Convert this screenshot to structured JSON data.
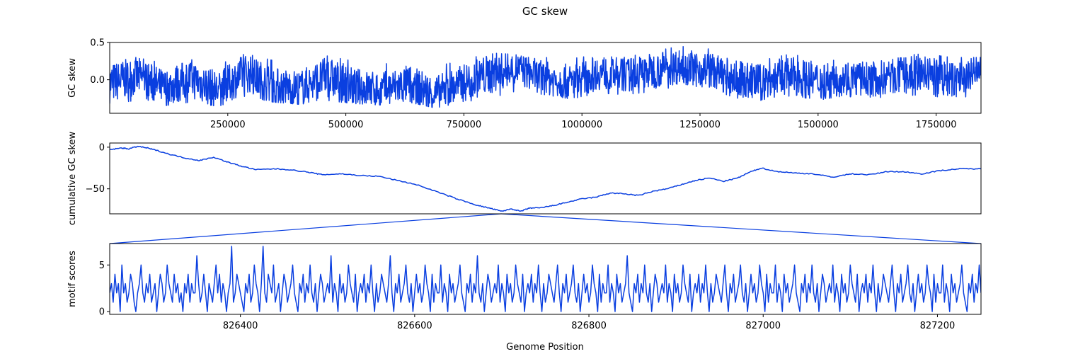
{
  "figure": {
    "title": "GC skew",
    "xlabel": "Genome Position",
    "line_color": "#0a3fe0"
  },
  "chart_data": [
    {
      "type": "line",
      "ylabel": "GC skew",
      "xlim": [
        0,
        1845000
      ],
      "ylim": [
        -0.45,
        0.5
      ],
      "xticks": [
        250000,
        500000,
        750000,
        1000000,
        1250000,
        1500000,
        1750000
      ],
      "yticks": [
        0.0,
        0.5
      ],
      "ytick_labels": [
        "0.0",
        "0.5"
      ],
      "grid": false,
      "series": [
        {
          "x": [
            0,
            57000,
            115000,
            172000,
            230000,
            287000,
            345000,
            402000,
            460000,
            517000,
            575000,
            632000,
            690000,
            747000,
            805000,
            862000,
            920000,
            977000,
            1035000,
            1092000,
            1150000,
            1207000,
            1265000,
            1322000,
            1380000,
            1437000,
            1495000,
            1552000,
            1610000,
            1667000,
            1725000,
            1782000,
            1845000
          ],
          "y": [
            -0.05,
            0.05,
            -0.12,
            0.02,
            -0.15,
            0.1,
            -0.08,
            -0.12,
            0.04,
            -0.1,
            -0.14,
            -0.06,
            -0.2,
            -0.05,
            0.08,
            0.15,
            0.02,
            -0.04,
            0.1,
            0.06,
            0.12,
            0.18,
            0.14,
            0.02,
            -0.04,
            0.06,
            -0.02,
            0.03,
            0.0,
            0.05,
            0.08,
            -0.02,
            0.1
          ],
          "ymin": [
            -0.32,
            -0.28,
            -0.35,
            -0.3,
            -0.36,
            -0.22,
            -0.3,
            -0.33,
            -0.28,
            -0.32,
            -0.34,
            -0.3,
            -0.38,
            -0.3,
            -0.25,
            -0.15,
            -0.2,
            -0.26,
            -0.18,
            -0.2,
            -0.16,
            -0.08,
            -0.1,
            -0.24,
            -0.3,
            -0.22,
            -0.28,
            -0.22,
            -0.25,
            -0.22,
            -0.2,
            -0.26,
            -0.2
          ],
          "ymax": [
            0.28,
            0.3,
            0.22,
            0.3,
            0.2,
            0.35,
            0.26,
            0.22,
            0.32,
            0.25,
            0.2,
            0.28,
            0.18,
            0.26,
            0.36,
            0.34,
            0.3,
            0.28,
            0.34,
            0.3,
            0.38,
            0.45,
            0.42,
            0.3,
            0.26,
            0.34,
            0.3,
            0.32,
            0.28,
            0.32,
            0.35,
            0.3,
            0.3
          ]
        }
      ]
    },
    {
      "type": "line",
      "ylabel": "cumulative GC skew",
      "xlim": [
        0,
        1845000
      ],
      "ylim": [
        -80,
        5
      ],
      "yticks": [
        0,
        -50
      ],
      "ytick_labels": [
        "0",
        "−50"
      ],
      "grid": false,
      "series": [
        {
          "x": [
            0,
            25000,
            40000,
            60000,
            80000,
            100000,
            130000,
            160000,
            190000,
            220000,
            250000,
            280000,
            310000,
            350000,
            380000,
            420000,
            450000,
            490000,
            530000,
            570000,
            610000,
            650000,
            700000,
            740000,
            780000,
            810000,
            830000,
            850000,
            870000,
            890000,
            910000,
            940000,
            970000,
            1000000,
            1030000,
            1060000,
            1090000,
            1120000,
            1150000,
            1180000,
            1210000,
            1240000,
            1270000,
            1300000,
            1330000,
            1355000,
            1380000,
            1410000,
            1450000,
            1490000,
            1530000,
            1570000,
            1610000,
            1650000,
            1690000,
            1720000,
            1760000,
            1800000,
            1845000
          ],
          "y": [
            -3,
            -1,
            -2,
            1,
            -1,
            -4,
            -9,
            -13,
            -16,
            -12,
            -18,
            -23,
            -27,
            -26,
            -27,
            -30,
            -33,
            -32,
            -34,
            -35,
            -40,
            -45,
            -55,
            -63,
            -70,
            -74,
            -77,
            -74,
            -77,
            -73,
            -73,
            -70,
            -66,
            -62,
            -60,
            -55,
            -56,
            -58,
            -53,
            -50,
            -45,
            -40,
            -37,
            -41,
            -37,
            -30,
            -25,
            -29,
            -31,
            -32,
            -36,
            -32,
            -33,
            -29,
            -30,
            -32,
            -28,
            -26,
            -26
          ]
        }
      ]
    },
    {
      "type": "line",
      "ylabel": "motif scores",
      "xlim": [
        826250,
        827250
      ],
      "ylim": [
        -0.3,
        7.3
      ],
      "xticks": [
        826400,
        826600,
        826800,
        827000,
        827200
      ],
      "yticks": [
        0,
        5
      ],
      "grid": false,
      "series": [
        {
          "x_start": 826250,
          "x_step": 2,
          "y": [
            2,
            3,
            1,
            4,
            2,
            3,
            0,
            5,
            2,
            3,
            1,
            2,
            4,
            3,
            1,
            0,
            2,
            3,
            5,
            2,
            1,
            3,
            2,
            4,
            1,
            2,
            3,
            0,
            2,
            4,
            3,
            1,
            2,
            5,
            3,
            2,
            1,
            4,
            2,
            3,
            1,
            2,
            0,
            3,
            2,
            4,
            1,
            3,
            2,
            2,
            6,
            3,
            1,
            2,
            4,
            2,
            0,
            3,
            2,
            1,
            3,
            5,
            2,
            4,
            1,
            3,
            2,
            0,
            2,
            3,
            7,
            1,
            2,
            4,
            3,
            2,
            1,
            0,
            3,
            2,
            4,
            1,
            2,
            5,
            3,
            2,
            0,
            3,
            7,
            2,
            1,
            4,
            3,
            2,
            5,
            1,
            2,
            3,
            0,
            2,
            4,
            3,
            1,
            2,
            3,
            5,
            2,
            1,
            0,
            3,
            2,
            4,
            1,
            3,
            2,
            5,
            2,
            1,
            3,
            0,
            2,
            4,
            3,
            1,
            2,
            3,
            2,
            6,
            1,
            3,
            2,
            0,
            4,
            2,
            3,
            1,
            2,
            5,
            3,
            2,
            1,
            4,
            0,
            2,
            3,
            2,
            4,
            1,
            3,
            2,
            5,
            2,
            0,
            3,
            1,
            2,
            4,
            3,
            2,
            1,
            3,
            6,
            2,
            0,
            3,
            2,
            4,
            1,
            2,
            3,
            5,
            2,
            1,
            3,
            0,
            2,
            4,
            2,
            3,
            1,
            2,
            5,
            3,
            2,
            0,
            4,
            1,
            3,
            2,
            2,
            5,
            1,
            3,
            2,
            0,
            4,
            2,
            3,
            1,
            2,
            3,
            5,
            2,
            1,
            0,
            3,
            2,
            4,
            1,
            3,
            2,
            6,
            2,
            1,
            3,
            0,
            2,
            4,
            3,
            1,
            2,
            3,
            2,
            5,
            1,
            3,
            2,
            0,
            4,
            2,
            3,
            1,
            2,
            5,
            3,
            2,
            1,
            4,
            0,
            2,
            3,
            2,
            4,
            1,
            3,
            2,
            5,
            2,
            0,
            3,
            1,
            2,
            4,
            3,
            2,
            1,
            3,
            5,
            2,
            0,
            3,
            2,
            4,
            1,
            2,
            3,
            5,
            2,
            1,
            3,
            0,
            2,
            4,
            2,
            3,
            1,
            2,
            5,
            3,
            2,
            0,
            4,
            1,
            3,
            2,
            2,
            5,
            1,
            3,
            2,
            0,
            4,
            2,
            3,
            1,
            2,
            3,
            6,
            2,
            1,
            0,
            3,
            2,
            4,
            1,
            3,
            2,
            5,
            2,
            1,
            3,
            0,
            2,
            4,
            3,
            1,
            2,
            3,
            2,
            5,
            1,
            3,
            2,
            0,
            4,
            2,
            3,
            1,
            2,
            5,
            3,
            2,
            1,
            4,
            0,
            2,
            3,
            2,
            4,
            1,
            3,
            2,
            5,
            2,
            0,
            3,
            1,
            2,
            4,
            3,
            2,
            1,
            3,
            5,
            2,
            0,
            3,
            2,
            4,
            1,
            2,
            3,
            5,
            2,
            1,
            3,
            0,
            2,
            4,
            2,
            3,
            1,
            2,
            5,
            3,
            2,
            0,
            4,
            1,
            3,
            2,
            2,
            5,
            1,
            3,
            2,
            0,
            4,
            2,
            3,
            1,
            2,
            3,
            5,
            2,
            1,
            0,
            3,
            2,
            4,
            1,
            3,
            2,
            5,
            2,
            1,
            3,
            0,
            2,
            4,
            3,
            1,
            2,
            3,
            2,
            5,
            1,
            3,
            2,
            0,
            4,
            2,
            3,
            1,
            2,
            5,
            3,
            2,
            1,
            4,
            0,
            2,
            3,
            2,
            4,
            1,
            3,
            2,
            5,
            2,
            0,
            3,
            1,
            2,
            4,
            3,
            2,
            1,
            3,
            5,
            2,
            0,
            3,
            2,
            4,
            1,
            2,
            3,
            5,
            2,
            1,
            3,
            0,
            2,
            4,
            2,
            3,
            1,
            2,
            5,
            3,
            2,
            0,
            4,
            1,
            3,
            2,
            2,
            5,
            1,
            3,
            2,
            0,
            4,
            2,
            3,
            1,
            2,
            3,
            5,
            2,
            1,
            0,
            3,
            2,
            4,
            1,
            3,
            2,
            5,
            2,
            1
          ]
        }
      ]
    }
  ]
}
